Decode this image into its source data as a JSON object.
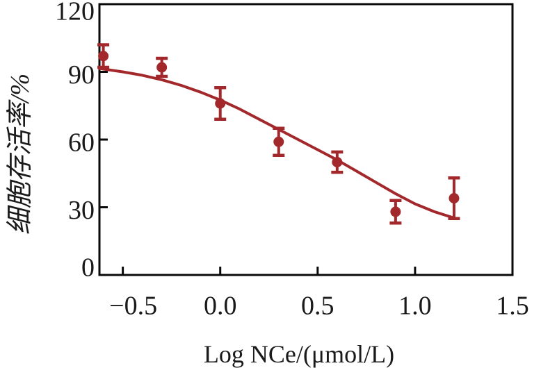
{
  "figure": {
    "background": "#ffffff",
    "axis_color": "#0a0a0a",
    "text_color": "#1a1a1a",
    "accent_color": "#A3282B"
  },
  "chart_data": {
    "type": "scatter",
    "title": "",
    "xlabel": "Log NCe/(μmol/L)",
    "ylabel": "细胞存活率/%",
    "xlim": [
      -0.62,
      1.5
    ],
    "ylim": [
      0,
      120
    ],
    "grid": false,
    "legend": "none",
    "x_ticks": [
      -0.5,
      0.0,
      0.5,
      1.0,
      1.5
    ],
    "x_tick_labels": [
      "−0.5",
      "0.0",
      "0.5",
      "1.0",
      "1.5"
    ],
    "y_ticks": [
      0,
      30,
      60,
      90,
      120
    ],
    "y_tick_labels": [
      "0",
      "30",
      "60",
      "90",
      "120"
    ],
    "series": [
      {
        "name": "cell-viability-measured",
        "type": "scatter-with-errorbars",
        "marker": "circle",
        "color": "#A3282B",
        "points": [
          {
            "x": -0.6,
            "y": 97,
            "err": 5
          },
          {
            "x": -0.3,
            "y": 92,
            "err": 4
          },
          {
            "x": 0.0,
            "y": 76,
            "err": 7
          },
          {
            "x": 0.3,
            "y": 59,
            "err": 6
          },
          {
            "x": 0.6,
            "y": 50,
            "err": 4.5
          },
          {
            "x": 0.9,
            "y": 28,
            "err": 5
          },
          {
            "x": 1.2,
            "y": 34,
            "err": 9
          }
        ]
      },
      {
        "name": "dose-response-fit-curve",
        "type": "line",
        "color": "#A3282B",
        "points": [
          [
            -0.62,
            91.5
          ],
          [
            -0.5,
            90.0
          ],
          [
            -0.4,
            88.5
          ],
          [
            -0.3,
            86.5
          ],
          [
            -0.2,
            84.0
          ],
          [
            -0.1,
            81.0
          ],
          [
            0.0,
            77.5
          ],
          [
            0.1,
            73.5
          ],
          [
            0.2,
            69.0
          ],
          [
            0.3,
            64.5
          ],
          [
            0.4,
            60.0
          ],
          [
            0.5,
            55.5
          ],
          [
            0.6,
            51.0
          ],
          [
            0.7,
            46.0
          ],
          [
            0.8,
            41.0
          ],
          [
            0.9,
            36.0
          ],
          [
            1.0,
            31.5
          ],
          [
            1.1,
            28.0
          ],
          [
            1.21,
            25.0
          ]
        ]
      }
    ]
  }
}
